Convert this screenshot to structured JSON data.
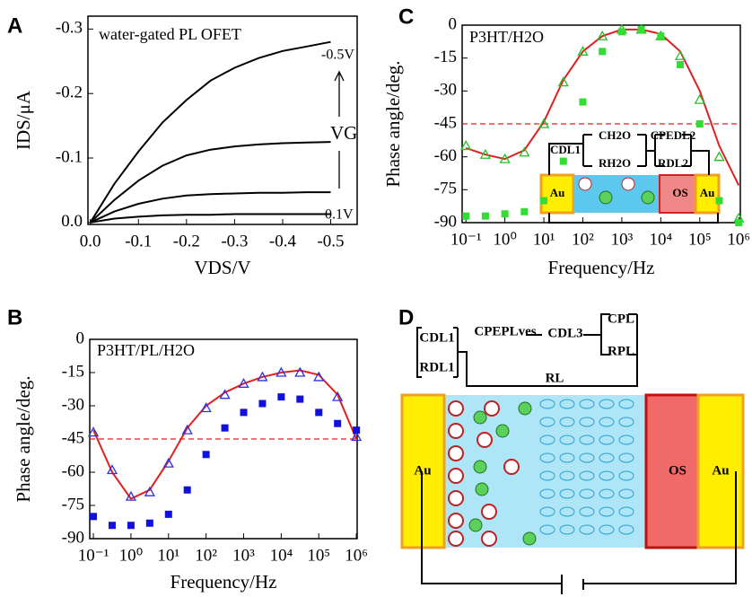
{
  "chart_data": [
    {
      "type": "line",
      "panel": "A",
      "title": "water-gated PL OFET",
      "xlabel": "VDS/V",
      "ylabel": "IDS/μA",
      "x": [
        0,
        -0.05,
        -0.1,
        -0.15,
        -0.2,
        -0.25,
        -0.3,
        -0.35,
        -0.4,
        -0.45,
        -0.5
      ],
      "series": [
        {
          "color": "#000000",
          "values": [
            0,
            -0.06,
            -0.11,
            -0.155,
            -0.19,
            -0.22,
            -0.24,
            -0.255,
            -0.266,
            -0.273,
            -0.28
          ]
        },
        {
          "color": "#000000",
          "values": [
            0,
            -0.035,
            -0.065,
            -0.088,
            -0.104,
            -0.113,
            -0.118,
            -0.121,
            -0.123,
            -0.124,
            -0.125
          ]
        },
        {
          "color": "#000000",
          "values": [
            0,
            -0.017,
            -0.029,
            -0.037,
            -0.042,
            -0.044,
            -0.045,
            -0.046,
            -0.046,
            -0.047,
            -0.047
          ]
        },
        {
          "color": "#000000",
          "values": [
            0,
            -0.006,
            -0.009,
            -0.011,
            -0.012,
            -0.012,
            -0.013,
            -0.013,
            -0.013,
            -0.013,
            -0.013
          ]
        }
      ],
      "annotations": [
        "-0.5V",
        "VG",
        "0.1V"
      ],
      "xlim": [
        0.005,
        -0.555
      ],
      "xticks": [
        {
          "value": 0,
          "label": "0.0"
        },
        -0.1,
        -0.2,
        -0.3,
        -0.4,
        -0.5
      ],
      "ylim": [
        0.003,
        -0.32
      ],
      "yticks": [
        {
          "value": 0,
          "label": "0.0"
        },
        -0.1,
        -0.2,
        -0.3
      ]
    },
    {
      "type": "line",
      "panel": "B",
      "title": "P3HT/PL/H2O",
      "xlabel": "Frequency/Hz",
      "ylabel": "Phase angle/deg.",
      "log_x": true,
      "x": [
        0.1,
        0.316,
        1,
        3.16,
        10,
        31.6,
        100,
        316,
        1000,
        3160,
        10000,
        31600,
        100000,
        316000,
        1000000
      ],
      "series": [
        {
          "color": "#e02020",
          "marker": "line",
          "values": [
            -41,
            -60,
            -72,
            -68,
            -55,
            -40,
            -30,
            -24,
            -20,
            -17,
            -15,
            -14,
            -16,
            -25,
            -45
          ]
        },
        {
          "color": "#3030e0",
          "marker": "triangle-open",
          "values": [
            -42,
            -59,
            -71,
            -69,
            -56,
            -41,
            -31,
            -25,
            -20,
            -17,
            -15,
            -15,
            -17,
            -26,
            -44
          ]
        },
        {
          "color": "#1010e0",
          "marker": "square",
          "values": [
            -80,
            -84,
            -84,
            -83,
            -79,
            -68,
            -52,
            -40,
            -33,
            -29,
            -26,
            -27,
            -33,
            -38,
            -41
          ]
        }
      ],
      "reference_line": {
        "value": -45,
        "color": "#e02020"
      },
      "xlim": [
        0.08,
        1050000
      ],
      "xticks": [
        {
          "value": 0.1,
          "label": "10⁻¹"
        },
        {
          "value": 1,
          "label": "10⁰"
        },
        {
          "value": 10,
          "label": "10¹"
        },
        {
          "value": 100,
          "label": "10²"
        },
        {
          "value": 1000,
          "label": "10³"
        },
        {
          "value": 10000,
          "label": "10⁴"
        },
        {
          "value": 100000,
          "label": "10⁵"
        },
        {
          "value": 1000000,
          "label": "10⁶"
        }
      ],
      "ylim": [
        -90,
        0
      ],
      "yticks": [
        0,
        -15,
        -30,
        -45,
        -60,
        -75,
        -90
      ]
    },
    {
      "type": "line",
      "panel": "C",
      "title": "P3HT/H2O",
      "xlabel": "Frequency/Hz",
      "ylabel": "Phase angle/deg.",
      "log_x": true,
      "x": [
        0.1,
        0.316,
        1,
        3.16,
        10,
        31.6,
        100,
        316,
        1000,
        3160,
        10000,
        31600,
        100000,
        316000,
        1000000
      ],
      "series": [
        {
          "color": "#e02020",
          "marker": "line",
          "values": [
            -56,
            -59,
            -61,
            -57,
            -44,
            -25,
            -12,
            -5,
            -2,
            -2,
            -4,
            -12,
            -30,
            -55,
            -73
          ]
        },
        {
          "color": "#22c022",
          "marker": "triangle-open",
          "values": [
            -55,
            -59,
            -61,
            -58,
            -45,
            -26,
            -12,
            -5,
            -2,
            -2,
            -5,
            -14,
            -34,
            -60,
            -88
          ]
        },
        {
          "color": "#33dd33",
          "marker": "square",
          "values": [
            -87,
            -87,
            -86,
            -85,
            -80,
            -62,
            -35,
            -12,
            -3,
            -2,
            -5,
            -18,
            -45,
            -80,
            -90
          ]
        }
      ],
      "reference_line": {
        "value": -45,
        "color": "#e02020"
      },
      "xlim": [
        0.08,
        1100000
      ],
      "xticks": [
        {
          "value": 0.1,
          "label": "10⁻¹"
        },
        {
          "value": 1,
          "label": "10⁰"
        },
        {
          "value": 10,
          "label": "10¹"
        },
        {
          "value": 100,
          "label": "10²"
        },
        {
          "value": 1000,
          "label": "10³"
        },
        {
          "value": 10000,
          "label": "10⁴"
        },
        {
          "value": 100000,
          "label": "10⁵"
        },
        {
          "value": 1000000,
          "label": "10⁶"
        }
      ],
      "ylim": [
        -90,
        0
      ],
      "yticks": [
        0,
        -15,
        -30,
        -45,
        -60,
        -75,
        -90
      ]
    }
  ],
  "inset_c": {
    "labels": [
      "CDL1",
      "CH2O",
      "RH2O",
      "CPEDL2",
      "RDL2"
    ],
    "electrodes": [
      "Au",
      "OS",
      "Au"
    ]
  },
  "diagram_d": {
    "panel": "D",
    "labels": [
      "CDL1",
      "RDL1",
      "CPEPLves",
      "CDL3",
      "CPL",
      "RPL",
      "RL"
    ],
    "electrodes": [
      "Au",
      "OS",
      "Au"
    ]
  }
}
